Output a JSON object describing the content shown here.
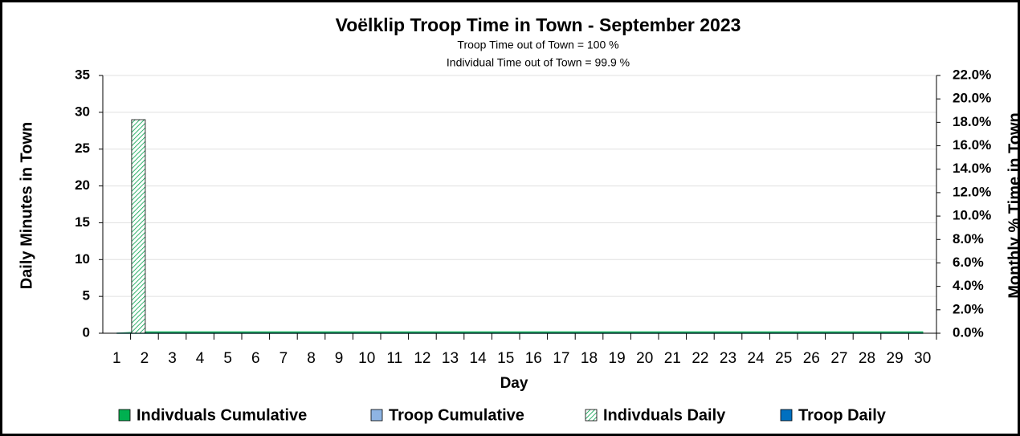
{
  "chart_data": {
    "type": "bar",
    "title": "Voëlklip Troop Time in Town - September 2023",
    "subtitle": [
      "Troop Time out of Town = 100 %",
      "Individual Time out of Town = 99.9 %"
    ],
    "x_label": "Day",
    "y_label": "Daily Minutes in Town",
    "y2_label": "Monthly % Time in Town",
    "categories": [
      "1",
      "2",
      "3",
      "4",
      "5",
      "6",
      "7",
      "8",
      "9",
      "10",
      "11",
      "12",
      "13",
      "14",
      "15",
      "16",
      "17",
      "18",
      "19",
      "20",
      "21",
      "22",
      "23",
      "24",
      "25",
      "26",
      "27",
      "28",
      "29",
      "30"
    ],
    "series": [
      {
        "name": "Indivduals Cumulative",
        "color": "#00b050",
        "kind": "area",
        "axis": "y2",
        "values": [
          0,
          0.1,
          0.1,
          0.1,
          0.1,
          0.1,
          0.1,
          0.1,
          0.1,
          0.1,
          0.1,
          0.1,
          0.1,
          0.1,
          0.1,
          0.1,
          0.1,
          0.1,
          0.1,
          0.1,
          0.1,
          0.1,
          0.1,
          0.1,
          0.1,
          0.1,
          0.1,
          0.1,
          0.1,
          0.1
        ]
      },
      {
        "name": "Troop Cumulative",
        "color": "#8eb4e3",
        "kind": "area",
        "axis": "y2",
        "values": [
          0,
          0,
          0,
          0,
          0,
          0,
          0,
          0,
          0,
          0,
          0,
          0,
          0,
          0,
          0,
          0,
          0,
          0,
          0,
          0,
          0,
          0,
          0,
          0,
          0,
          0,
          0,
          0,
          0,
          0
        ]
      },
      {
        "name": "Indivduals Daily",
        "color": "#00b050",
        "kind": "hatched-bar",
        "values": [
          0,
          29,
          0,
          0,
          0,
          0,
          0,
          0,
          0,
          0,
          0,
          0,
          0,
          0,
          0,
          0,
          0,
          0,
          0,
          0,
          0,
          0,
          0,
          0,
          0,
          0,
          0,
          0,
          0,
          0
        ]
      },
      {
        "name": "Troop Daily",
        "color": "#0070c0",
        "kind": "bar",
        "values": [
          0,
          0,
          0,
          0,
          0,
          0,
          0,
          0,
          0,
          0,
          0,
          0,
          0,
          0,
          0,
          0,
          0,
          0,
          0,
          0,
          0,
          0,
          0,
          0,
          0,
          0,
          0,
          0,
          0,
          0
        ]
      }
    ],
    "ylim": [
      0,
      35
    ],
    "yticks": [
      0,
      5,
      10,
      15,
      20,
      25,
      30,
      35
    ],
    "y2lim": [
      0,
      22
    ],
    "y2ticks": [
      {
        "value": 0,
        "label": "0.0%"
      },
      {
        "value": 2,
        "label": "2.0%"
      },
      {
        "value": 4,
        "label": "4.0%"
      },
      {
        "value": 6,
        "label": "6.0%"
      },
      {
        "value": 8,
        "label": "8.0%"
      },
      {
        "value": 10,
        "label": "10.0%"
      },
      {
        "value": 12,
        "label": "12.0%"
      },
      {
        "value": 14,
        "label": "14.0%"
      },
      {
        "value": 16,
        "label": "16.0%"
      },
      {
        "value": 18,
        "label": "18.0%"
      },
      {
        "value": 20,
        "label": "20.0%"
      },
      {
        "value": 22,
        "label": "22.0%"
      }
    ],
    "grid": true,
    "legend": "bottom"
  }
}
